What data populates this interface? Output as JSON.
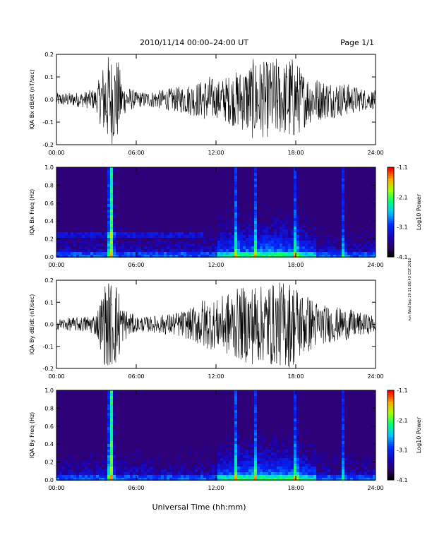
{
  "header": {
    "title": "2010/11/14  00:00–24:00 UT",
    "page": "Page 1/1"
  },
  "side_stamp": "run Wed Sep 20 11:00:43 CST 2010",
  "xlabel": "Universal Time (hh:mm)",
  "x_ticks": [
    "00:00",
    "06:00",
    "12:00",
    "18:00",
    "24:00"
  ],
  "colorbar": {
    "label": "Log10 Power",
    "ticks": [
      "-1.1",
      "-2.1",
      "-3.1",
      "-4.1"
    ],
    "range": [
      -4.1,
      -1.1
    ]
  },
  "chart_data": [
    {
      "type": "line",
      "ylabel": "IQA Bx dB/dt (nT/sec)",
      "xlim": [
        0,
        24
      ],
      "ylim": [
        -0.2,
        0.2
      ],
      "y_ticks": [
        "0.2",
        "0.1",
        "0.0",
        "-0.1",
        "-0.2"
      ],
      "x_ticks": [
        "00:00",
        "06:00",
        "12:00",
        "18:00",
        "24:00"
      ],
      "series": [
        {
          "x": [
            0,
            1,
            2,
            3,
            3.7,
            4.0,
            4.3,
            4.6,
            5,
            6,
            7,
            8,
            9,
            10,
            11,
            11.5,
            12,
            13,
            14,
            15,
            15.5,
            16,
            16.5,
            17,
            17.5,
            18,
            18.5,
            19,
            20,
            21,
            22,
            23,
            24
          ],
          "y": [
            0.03,
            0.03,
            0.035,
            0.05,
            0.2,
            0.2,
            0.2,
            0.19,
            0.07,
            0.035,
            0.035,
            0.045,
            0.055,
            0.07,
            0.085,
            0.11,
            0.08,
            0.11,
            0.14,
            0.19,
            0.17,
            0.17,
            0.19,
            0.15,
            0.2,
            0.18,
            0.13,
            0.11,
            0.09,
            0.08,
            0.07,
            0.05,
            0.04
          ]
        }
      ]
    },
    {
      "type": "heatmap",
      "ylabel": "IQA Bx Freq (Hz)",
      "xlim": [
        0,
        24
      ],
      "ylim": [
        0.0,
        1.0
      ],
      "y_ticks": [
        "1.0",
        "0.8",
        "0.6",
        "0.4",
        "0.2",
        "0.0"
      ],
      "x_ticks": [
        "00:00",
        "06:00",
        "12:00",
        "18:00",
        "24:00"
      ],
      "value_range": [
        -4.1,
        -1.1
      ],
      "notes": [
        "broadband burst near 04:00",
        "band near 0.25 Hz from 00:00 to 11:00",
        "enhanced power 12:00-19:00 below 0.4 Hz",
        "narrow bursts near 13:30, 15:00, 18:00, 21:30"
      ]
    },
    {
      "type": "line",
      "ylabel": "IQA By dB/dt (nT/sec)",
      "xlim": [
        0,
        24
      ],
      "ylim": [
        -0.2,
        0.2
      ],
      "y_ticks": [
        "0.2",
        "0.1",
        "0.0",
        "-0.1",
        "-0.2"
      ],
      "x_ticks": [
        "00:00",
        "06:00",
        "12:00",
        "18:00",
        "24:00"
      ],
      "series": [
        {
          "x": [
            0,
            1,
            2,
            3,
            3.7,
            4.0,
            4.3,
            4.6,
            5,
            6,
            7,
            8,
            9,
            10,
            10.5,
            11,
            12,
            13,
            14,
            15,
            15.5,
            16,
            16.5,
            17,
            17.5,
            18,
            18.5,
            19,
            20,
            21,
            22,
            23,
            24
          ],
          "y": [
            0.025,
            0.03,
            0.035,
            0.05,
            0.2,
            0.2,
            0.2,
            0.19,
            0.08,
            0.035,
            0.035,
            0.045,
            0.055,
            0.07,
            0.09,
            0.12,
            0.11,
            0.15,
            0.17,
            0.19,
            0.17,
            0.2,
            0.18,
            0.2,
            0.2,
            0.19,
            0.15,
            0.13,
            0.09,
            0.08,
            0.07,
            0.05,
            0.04
          ]
        }
      ]
    },
    {
      "type": "heatmap",
      "ylabel": "IQA By Freq (Hz)",
      "xlim": [
        0,
        24
      ],
      "ylim": [
        0.0,
        1.0
      ],
      "y_ticks": [
        "1.0",
        "0.8",
        "0.6",
        "0.4",
        "0.2",
        "0.0"
      ],
      "x_ticks": [
        "00:00",
        "06:00",
        "12:00",
        "18:00",
        "24:00"
      ],
      "value_range": [
        -4.1,
        -1.1
      ],
      "notes": [
        "broadband burst near 04:00",
        "enhanced power 12:00-19:00 below 0.4 Hz",
        "narrow bursts near 13:30, 15:00, 18:00, 21:30"
      ]
    }
  ]
}
